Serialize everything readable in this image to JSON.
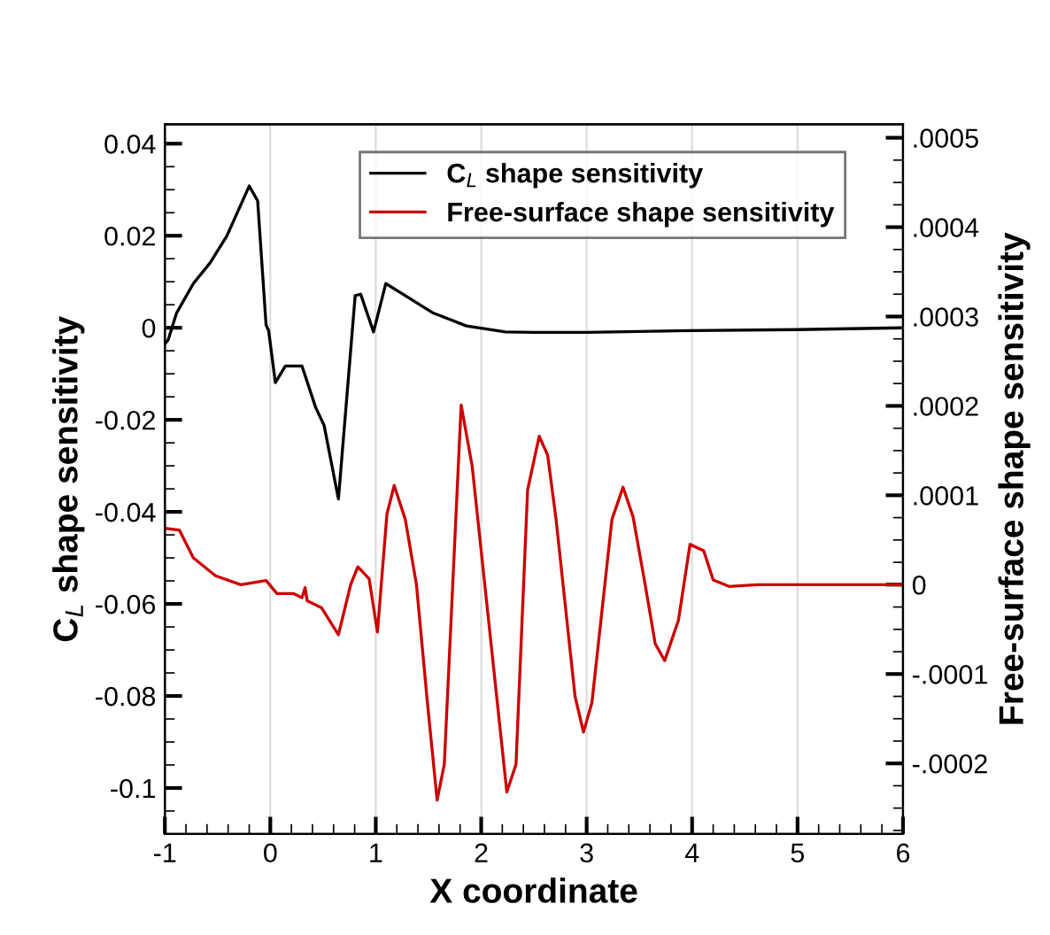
{
  "chart_data": {
    "type": "line",
    "xlabel": "X coordinate",
    "ylabel": "C$_{L}$ shape sensitivity",
    "y2label": "Free-surface shape sensitivity",
    "xlim": [
      -1,
      6
    ],
    "xticks": [
      -1,
      0,
      1,
      2,
      3,
      4,
      5,
      6
    ],
    "ylim": [
      -0.11,
      0.0442
    ],
    "yticks": [
      -0.1,
      -0.08,
      -0.06,
      -0.04,
      -0.02,
      0,
      0.02,
      0.04
    ],
    "y2lim": [
      -0.000279,
      0.000515
    ],
    "y2ticks": [
      {
        "value": -0.0002,
        "label": "-.0002"
      },
      {
        "value": -0.0001,
        "label": "-.0001"
      },
      0,
      {
        "value": 0.0001,
        "label": ".0001"
      },
      {
        "value": 0.0002,
        "label": ".0002"
      },
      {
        "value": 0.0003,
        "label": ".0003"
      },
      {
        "value": 0.0004,
        "label": ".0004"
      },
      {
        "value": 0.0005,
        "label": ".0005"
      }
    ],
    "grid": "x",
    "legend": "top right",
    "line_style": "solid",
    "marker": "none",
    "series": [
      {
        "name": "C$_{L}$ shape sensitivity",
        "color": "#000000",
        "x": [
          -1,
          -0.968,
          -0.889,
          -0.73,
          -0.571,
          -0.413,
          -0.2,
          -0.12,
          -0.04,
          -0.016,
          0.048,
          0.143,
          0.3,
          0.43,
          0.51,
          0.646,
          0.805,
          0.857,
          0.979,
          1.095,
          1.28,
          1.545,
          1.86,
          2.23,
          2.5,
          3,
          3.5,
          4,
          5,
          6
        ],
        "values": [
          -0.0035,
          -0.0026,
          0.0032,
          0.0096,
          0.0141,
          0.0199,
          0.0308,
          0.0276,
          0.0006,
          -0.0006,
          -0.0119,
          -0.0083,
          -0.0083,
          -0.0173,
          -0.0212,
          -0.0372,
          0.007,
          0.0073,
          -0.0009,
          0.0096,
          0.007,
          0.0032,
          0.0004,
          -0.0009,
          -0.001,
          -0.001,
          -0.0008,
          -0.0006,
          -0.0004,
          0
        ]
      },
      {
        "name": "Free-surface shape sensitivity",
        "color": "#cc0000",
        "axis": "y2",
        "x": [
          -1,
          -0.862,
          -0.73,
          -0.52,
          -0.28,
          -0.04,
          0.063,
          0.222,
          0.3,
          0.33,
          0.35,
          0.487,
          0.646,
          0.762,
          0.83,
          0.937,
          1.016,
          1.106,
          1.175,
          1.28,
          1.386,
          1.49,
          1.582,
          1.65,
          1.81,
          1.915,
          2.07,
          2.243,
          2.33,
          2.44,
          2.55,
          2.63,
          2.71,
          2.89,
          2.97,
          3.05,
          3.24,
          3.345,
          3.44,
          3.555,
          3.65,
          3.74,
          3.87,
          3.98,
          4.11,
          4.2,
          4.35,
          4.62,
          5,
          6
        ],
        "values": [
          6.3e-05,
          6.1e-05,
          3e-05,
          1e-05,
          0,
          4.6e-06,
          -1e-05,
          -1e-05,
          -1.45e-05,
          -3.3e-06,
          -1.8e-05,
          -2.6e-05,
          -5.6e-05,
          0,
          2e-05,
          6.6e-06,
          -5.3e-05,
          7.9e-05,
          0.000111,
          7.3e-05,
          0,
          -0.000132,
          -0.000241,
          -0.000201,
          0.000201,
          0.000132,
          -4e-05,
          -0.000232,
          -0.000201,
          0.000106,
          0.000166,
          0.000145,
          7.3e-05,
          -0.000125,
          -0.000165,
          -0.000132,
          7.3e-05,
          0.000109,
          7.6e-05,
          0,
          -6.6e-05,
          -8.5e-05,
          -4e-05,
          4.5e-05,
          3.8e-05,
          5.3e-06,
          -2e-06,
          0,
          0,
          0
        ]
      }
    ]
  }
}
